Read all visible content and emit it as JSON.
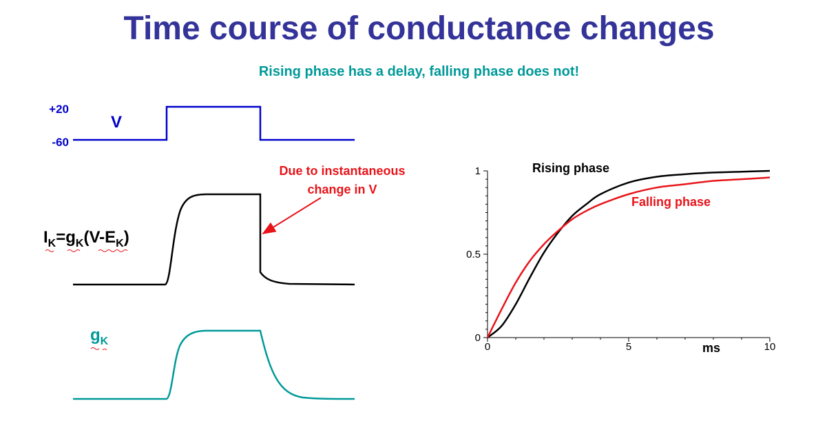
{
  "title": "Time course of conductance changes",
  "subtitle": "Rising phase has a delay, falling phase does not!",
  "colors": {
    "title": "#333399",
    "subtitle": "#009999",
    "voltage": "#0000cc",
    "current": "#000000",
    "conductance": "#009999",
    "annotation": "#e8141a",
    "rising": "#000000",
    "falling": "#e8141a"
  },
  "voltage_trace": {
    "label": "V",
    "high_label": "+20",
    "low_label": "-60"
  },
  "current_trace": {
    "label_parts": [
      "I",
      "K",
      "=g",
      "K",
      "(V-E",
      "K",
      ")"
    ]
  },
  "conductance_trace": {
    "label_parts": [
      "g",
      "K"
    ]
  },
  "annotation": {
    "line1": "Due to instantaneous",
    "line2": "change in V"
  },
  "chart_data": {
    "type": "line",
    "xlabel": "ms",
    "ylabel": "",
    "xlim": [
      0,
      10
    ],
    "ylim": [
      0,
      1
    ],
    "x_ticks": [
      "0",
      "5",
      "10"
    ],
    "y_ticks": [
      "0",
      "0.5",
      "1"
    ],
    "x": [
      0,
      0.5,
      1,
      1.5,
      2,
      2.5,
      3,
      3.5,
      4,
      5,
      6,
      7,
      8,
      9,
      10
    ],
    "series": [
      {
        "name": "Rising phase",
        "color": "#000000",
        "values": [
          0,
          0.07,
          0.2,
          0.36,
          0.51,
          0.63,
          0.73,
          0.8,
          0.86,
          0.93,
          0.965,
          0.98,
          0.99,
          0.995,
          1.0
        ]
      },
      {
        "name": "Falling phase",
        "color": "#e8141a",
        "values": [
          0,
          0.17,
          0.33,
          0.46,
          0.56,
          0.64,
          0.71,
          0.76,
          0.8,
          0.86,
          0.9,
          0.92,
          0.94,
          0.95,
          0.96
        ]
      }
    ]
  }
}
